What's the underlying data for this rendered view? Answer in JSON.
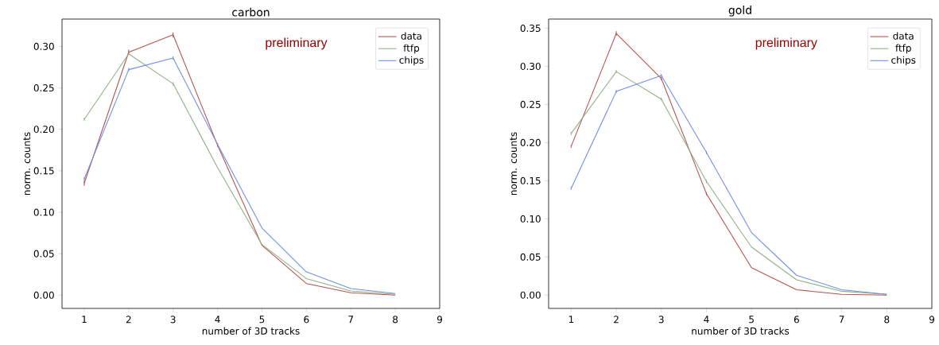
{
  "chart_data": [
    {
      "type": "line",
      "title": "carbon",
      "xlabel": "number of 3D tracks",
      "ylabel": "norm. counts",
      "annotations": [
        "preliminary"
      ],
      "x": [
        1,
        2,
        3,
        4,
        5,
        6,
        7,
        8
      ],
      "xlim": [
        0.5,
        9
      ],
      "xticks": [
        1,
        2,
        3,
        4,
        5,
        6,
        7,
        8,
        9
      ],
      "ylim": [
        -0.016,
        0.333
      ],
      "yticks": [
        {
          "value": 0,
          "label": "0.00"
        },
        {
          "value": 0.05,
          "label": "0.05"
        },
        {
          "value": 0.1,
          "label": "0.10"
        },
        {
          "value": 0.15,
          "label": "0.15"
        },
        {
          "value": 0.2,
          "label": "0.20"
        },
        {
          "value": 0.25,
          "label": "0.25"
        },
        {
          "value": 0.3,
          "label": "0.30"
        }
      ],
      "legend": "top right",
      "marker": "none",
      "line_style": "solid",
      "series": [
        {
          "name": "data",
          "color": "#b5524f",
          "values": [
            0.135,
            0.293,
            0.314,
            0.181,
            0.06,
            0.014,
            0.003,
            0.0
          ],
          "errors": [
            0.003,
            0.003,
            0.003,
            0.002,
            null,
            null,
            null,
            null
          ]
        },
        {
          "name": "ftfp",
          "color": "#8fb185",
          "values": [
            0.212,
            0.291,
            0.255,
            0.154,
            0.061,
            0.02,
            0.005,
            0.001
          ],
          "errors": [
            0.002,
            null,
            0.002,
            null,
            null,
            null,
            null,
            null
          ]
        },
        {
          "name": "chips",
          "color": "#6d8fe8",
          "values": [
            0.14,
            0.272,
            0.286,
            0.182,
            0.081,
            0.028,
            0.008,
            0.002
          ],
          "errors": [
            0.002,
            0.002,
            0.002,
            null,
            null,
            null,
            null,
            null
          ]
        }
      ]
    },
    {
      "type": "line",
      "title": "gold",
      "xlabel": "number of 3D tracks",
      "ylabel": "norm. counts",
      "annotations": [
        "preliminary"
      ],
      "x": [
        1,
        2,
        3,
        4,
        5,
        6,
        7,
        8
      ],
      "xlim": [
        0.5,
        9
      ],
      "xticks": [
        1,
        2,
        3,
        4,
        5,
        6,
        7,
        8,
        9
      ],
      "ylim": [
        -0.0175,
        0.362
      ],
      "yticks": [
        {
          "value": 0,
          "label": "0.00"
        },
        {
          "value": 0.05,
          "label": "0.05"
        },
        {
          "value": 0.1,
          "label": "0.10"
        },
        {
          "value": 0.15,
          "label": "0.15"
        },
        {
          "value": 0.2,
          "label": "0.20"
        },
        {
          "value": 0.25,
          "label": "0.25"
        },
        {
          "value": 0.3,
          "label": "0.30"
        },
        {
          "value": 0.35,
          "label": "0.35"
        }
      ],
      "legend": "top right",
      "marker": "none",
      "line_style": "solid",
      "series": [
        {
          "name": "data",
          "color": "#b5524f",
          "values": [
            0.195,
            0.343,
            0.284,
            0.133,
            0.036,
            0.007,
            0.001,
            0.0
          ],
          "errors": [
            0.002,
            0.003,
            0.002,
            0.002,
            null,
            null,
            null,
            null
          ]
        },
        {
          "name": "ftfp",
          "color": "#8fb185",
          "values": [
            0.212,
            0.293,
            0.257,
            0.149,
            0.063,
            0.02,
            0.005,
            0.001
          ],
          "errors": [
            0.002,
            0.002,
            0.002,
            0.002,
            null,
            null,
            null,
            null
          ]
        },
        {
          "name": "chips",
          "color": "#6d8fe8",
          "values": [
            0.14,
            0.267,
            0.288,
            0.187,
            0.082,
            0.026,
            0.007,
            0.001
          ],
          "errors": [
            0.002,
            0.002,
            0.002,
            0.002,
            null,
            null,
            null,
            null
          ]
        }
      ]
    }
  ]
}
